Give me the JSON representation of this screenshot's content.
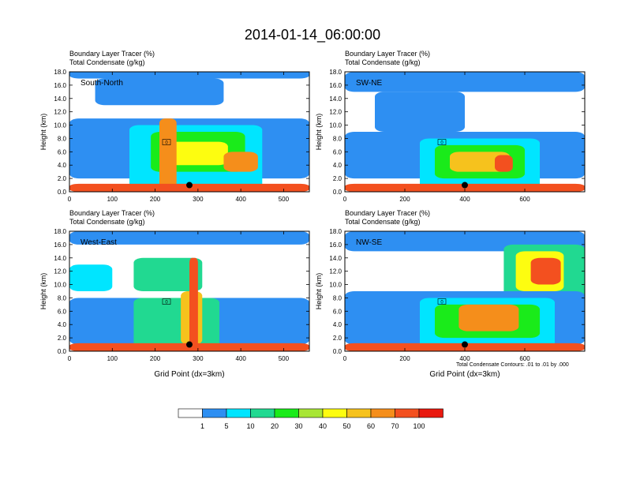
{
  "title": "2014-01-14_06:00:00",
  "colorbar": {
    "labels": [
      "1",
      "5",
      "10",
      "20",
      "30",
      "40",
      "50",
      "60",
      "70",
      "100"
    ],
    "colors": [
      "#ffffff",
      "#2e8ff2",
      "#00e5ff",
      "#21d991",
      "#1aeb1a",
      "#a8e635",
      "#fdfd10",
      "#f6c21d",
      "#f58e1b",
      "#f3501f",
      "#e9190f"
    ]
  },
  "chart_data": [
    {
      "type": "heatmap",
      "title_lines": [
        "Boundary Layer Tracer   (%)",
        "Total Condensate   (g/kg)"
      ],
      "cross_section_label": "South-North",
      "xlabel": "",
      "ylabel": "Height (km)",
      "xlim": [
        0,
        560
      ],
      "ylim": [
        0,
        18
      ],
      "xticks": [
        "0",
        "100",
        "200",
        "300",
        "400",
        "500"
      ],
      "yticks": [
        "0.0",
        "2.0",
        "4.0",
        "6.0",
        "8.0",
        "10.0",
        "12.0",
        "14.0",
        "16.0",
        "18.0"
      ],
      "marker": {
        "x": 280,
        "y": 1.0
      },
      "contour_label": "0",
      "features": [
        {
          "x": 0,
          "y": 17,
          "w": 560,
          "h": 1.5,
          "level": 1
        },
        {
          "x": 60,
          "y": 13,
          "w": 300,
          "h": 4,
          "level": 1
        },
        {
          "x": 0,
          "y": 2,
          "w": 560,
          "h": 9,
          "level": 1
        },
        {
          "x": 140,
          "y": 0,
          "w": 310,
          "h": 10,
          "level": 2
        },
        {
          "x": 190,
          "y": 3,
          "w": 220,
          "h": 6,
          "level": 4
        },
        {
          "x": 230,
          "y": 4,
          "w": 140,
          "h": 3.5,
          "level": 6
        },
        {
          "x": 360,
          "y": 3,
          "w": 80,
          "h": 3,
          "level": 8
        },
        {
          "x": 210,
          "y": 0,
          "w": 40,
          "h": 11,
          "level": 8
        },
        {
          "x": 0,
          "y": 0,
          "w": 560,
          "h": 1.2,
          "level": 9
        }
      ]
    },
    {
      "type": "heatmap",
      "title_lines": [
        "Boundary Layer Tracer   (%)",
        "Total Condensate   (g/kg)"
      ],
      "cross_section_label": "SW-NE",
      "xlabel": "",
      "ylabel": "Height (km)",
      "xlim": [
        0,
        800
      ],
      "ylim": [
        0,
        18
      ],
      "xticks": [
        "0",
        "200",
        "400",
        "600"
      ],
      "yticks": [
        "0.0",
        "2.0",
        "4.0",
        "6.0",
        "8.0",
        "10.0",
        "12.0",
        "14.0",
        "16.0",
        "18.0"
      ],
      "marker": {
        "x": 400,
        "y": 1.0
      },
      "contour_label": "0",
      "features": [
        {
          "x": 0,
          "y": 15,
          "w": 800,
          "h": 3,
          "level": 1
        },
        {
          "x": 100,
          "y": 9,
          "w": 300,
          "h": 6,
          "level": 1
        },
        {
          "x": 0,
          "y": 2,
          "w": 800,
          "h": 7,
          "level": 1
        },
        {
          "x": 250,
          "y": 0,
          "w": 400,
          "h": 8,
          "level": 2
        },
        {
          "x": 300,
          "y": 2,
          "w": 300,
          "h": 5,
          "level": 4
        },
        {
          "x": 350,
          "y": 3,
          "w": 200,
          "h": 3,
          "level": 7
        },
        {
          "x": 500,
          "y": 3,
          "w": 60,
          "h": 2.5,
          "level": 9
        },
        {
          "x": 0,
          "y": 0,
          "w": 800,
          "h": 1.2,
          "level": 9
        }
      ]
    },
    {
      "type": "heatmap",
      "title_lines": [
        "Boundary Layer Tracer   (%)",
        "Total Condensate   (g/kg)"
      ],
      "cross_section_label": "West-East",
      "xlabel": "Grid Point (dx=3km)",
      "ylabel": "Height (km)",
      "xlim": [
        0,
        560
      ],
      "ylim": [
        0,
        18
      ],
      "xticks": [
        "0",
        "100",
        "200",
        "300",
        "400",
        "500"
      ],
      "yticks": [
        "0.0",
        "2.0",
        "4.0",
        "6.0",
        "8.0",
        "10.0",
        "12.0",
        "14.0",
        "16.0",
        "18.0"
      ],
      "marker": {
        "x": 280,
        "y": 1.0
      },
      "contour_label": "0",
      "features": [
        {
          "x": 0,
          "y": 16,
          "w": 560,
          "h": 2,
          "level": 1
        },
        {
          "x": 0,
          "y": 9,
          "w": 100,
          "h": 4,
          "level": 2
        },
        {
          "x": 150,
          "y": 9,
          "w": 160,
          "h": 5,
          "level": 3
        },
        {
          "x": 0,
          "y": 1,
          "w": 560,
          "h": 7,
          "level": 1
        },
        {
          "x": 150,
          "y": 0,
          "w": 200,
          "h": 8,
          "level": 3
        },
        {
          "x": 260,
          "y": 1,
          "w": 50,
          "h": 8,
          "level": 7
        },
        {
          "x": 280,
          "y": 0,
          "w": 20,
          "h": 14,
          "level": 9
        },
        {
          "x": 0,
          "y": 0,
          "w": 560,
          "h": 1.2,
          "level": 9
        }
      ]
    },
    {
      "type": "heatmap",
      "title_lines": [
        "Boundary Layer Tracer   (%)",
        "Total Condensate   (g/kg)"
      ],
      "cross_section_label": "NW-SE",
      "xlabel": "Grid Point (dx=3km)",
      "ylabel": "Height (km)",
      "xlim": [
        0,
        800
      ],
      "ylim": [
        0,
        18
      ],
      "xticks": [
        "0",
        "200",
        "400",
        "600"
      ],
      "yticks": [
        "0.0",
        "2.0",
        "4.0",
        "6.0",
        "8.0",
        "10.0",
        "12.0",
        "14.0",
        "16.0",
        "18.0"
      ],
      "marker": {
        "x": 400,
        "y": 1.0
      },
      "contour_label": "0",
      "features": [
        {
          "x": 0,
          "y": 15,
          "w": 800,
          "h": 3,
          "level": 1
        },
        {
          "x": 530,
          "y": 8,
          "w": 270,
          "h": 8,
          "level": 3
        },
        {
          "x": 570,
          "y": 9,
          "w": 160,
          "h": 6,
          "level": 6
        },
        {
          "x": 620,
          "y": 10,
          "w": 100,
          "h": 4,
          "level": 9
        },
        {
          "x": 0,
          "y": 1,
          "w": 800,
          "h": 8,
          "level": 1
        },
        {
          "x": 250,
          "y": 0,
          "w": 450,
          "h": 8,
          "level": 2
        },
        {
          "x": 300,
          "y": 2,
          "w": 350,
          "h": 5,
          "level": 4
        },
        {
          "x": 380,
          "y": 3,
          "w": 200,
          "h": 4,
          "level": 8
        },
        {
          "x": 0,
          "y": 0,
          "w": 800,
          "h": 1.2,
          "level": 9
        }
      ]
    }
  ],
  "footnote": "Total Condensate Contours: .01 to .01 by .000"
}
